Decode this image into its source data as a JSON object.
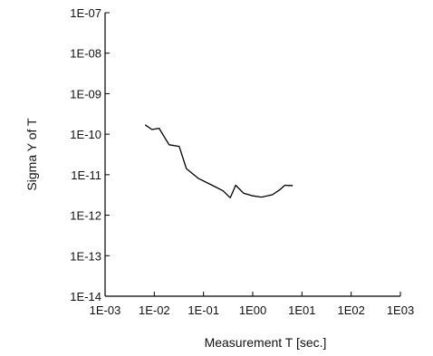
{
  "chart_data": {
    "type": "line",
    "xlabel": "Measurement T [sec.]",
    "ylabel": "Sigma Y of T",
    "x_scale": "log",
    "y_scale": "log",
    "xlim": [
      0.001,
      1000
    ],
    "ylim": [
      1e-14,
      1e-07
    ],
    "x_ticks": [
      {
        "value": 0.001,
        "label": "1E-03"
      },
      {
        "value": 0.01,
        "label": "1E-02"
      },
      {
        "value": 0.1,
        "label": "1E-01"
      },
      {
        "value": 1,
        "label": "1E00"
      },
      {
        "value": 10,
        "label": "1E01"
      },
      {
        "value": 100,
        "label": "1E02"
      },
      {
        "value": 1000,
        "label": "1E03"
      }
    ],
    "y_ticks": [
      {
        "value": 1e-07,
        "label": "1E-07"
      },
      {
        "value": 1e-08,
        "label": "1E-08"
      },
      {
        "value": 1e-09,
        "label": "1E-09"
      },
      {
        "value": 1e-10,
        "label": "1E-10"
      },
      {
        "value": 1e-11,
        "label": "1E-11"
      },
      {
        "value": 1e-12,
        "label": "1E-12"
      },
      {
        "value": 1e-13,
        "label": "1E-13"
      },
      {
        "value": 1e-14,
        "label": "1E-14"
      }
    ],
    "grid": false,
    "series": [
      {
        "color": "#000000",
        "x": [
          0.0065,
          0.009,
          0.0125,
          0.02,
          0.032,
          0.045,
          0.08,
          0.15,
          0.25,
          0.35,
          0.45,
          0.65,
          1.0,
          1.5,
          2.5,
          3.5,
          4.5,
          5.5,
          6.5
        ],
        "y": [
          1.7e-10,
          1.3e-10,
          1.4e-10,
          5.5e-11,
          5e-11,
          1.4e-11,
          8e-12,
          5.5e-12,
          4e-12,
          2.7e-12,
          5.5e-12,
          3.5e-12,
          3e-12,
          2.8e-12,
          3.2e-12,
          4.2e-12,
          5.5e-12,
          5.4e-12,
          5.4e-12
        ]
      }
    ]
  }
}
